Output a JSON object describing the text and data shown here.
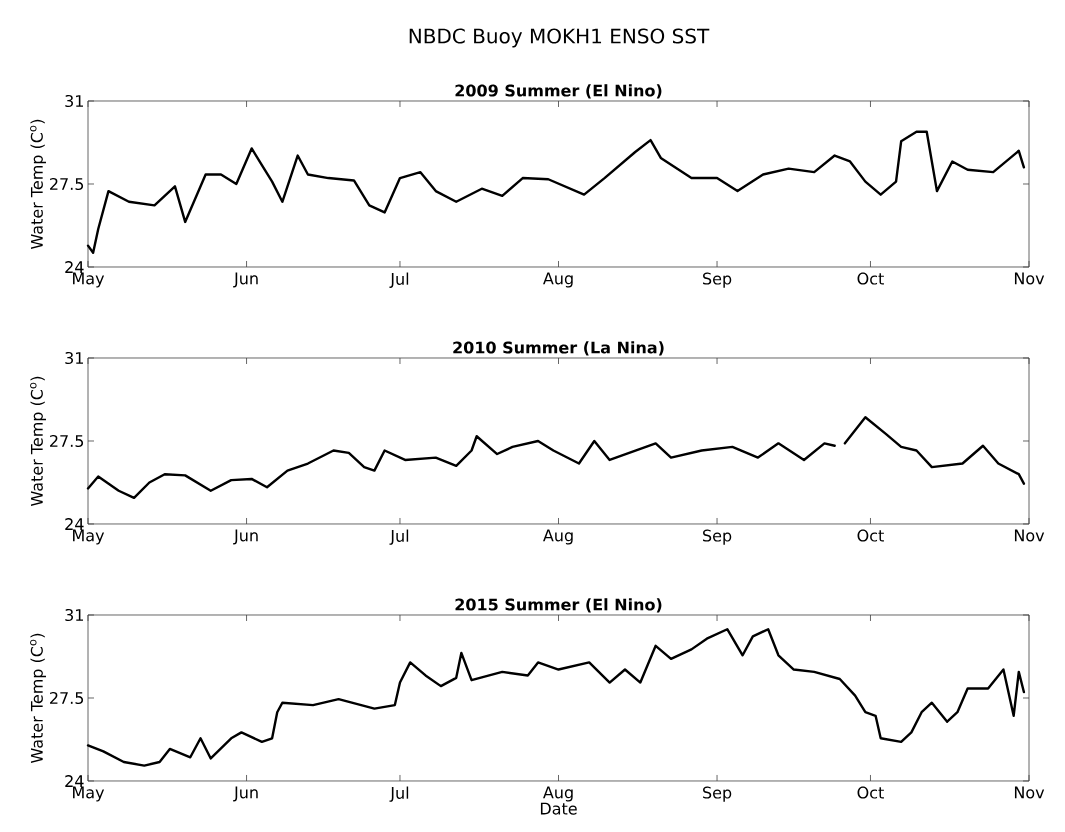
{
  "chart_data": [
    {
      "type": "line",
      "title": "NBDC Buoy MOKH1 ENSO SST",
      "subtitle": "2009 Summer (El Nino)",
      "ylabel": "Water Temp (C$^{o}$)",
      "color": "#000000",
      "marker": "none",
      "line_style": "solid",
      "xlim": [
        "2009-05-01",
        "2009-11-01"
      ],
      "xticks": [
        {
          "value": "2009-05-01",
          "label": "May"
        },
        {
          "value": "2009-06-01",
          "label": "Jun"
        },
        {
          "value": "2009-07-01",
          "label": "Jul"
        },
        {
          "value": "2009-08-01",
          "label": "Aug"
        },
        {
          "value": "2009-09-01",
          "label": "Sep"
        },
        {
          "value": "2009-10-01",
          "label": "Oct"
        },
        {
          "value": "2009-11-01",
          "label": "Nov"
        }
      ],
      "ylim": [
        24,
        31
      ],
      "yticks": [
        24,
        27.5,
        31
      ],
      "x": [
        "2009-05-01",
        "2009-05-02",
        "2009-05-03",
        "2009-05-05",
        "2009-05-09",
        "2009-05-14",
        "2009-05-18",
        "2009-05-20",
        "2009-05-24",
        "2009-05-27",
        "2009-05-30",
        "2009-06-02",
        "2009-06-04",
        "2009-06-06",
        "2009-06-08",
        "2009-06-11",
        "2009-06-13",
        "2009-06-17",
        "2009-06-22",
        "2009-06-25",
        "2009-06-28",
        "2009-07-01",
        "2009-07-05",
        "2009-07-08",
        "2009-07-12",
        "2009-07-17",
        "2009-07-21",
        "2009-07-25",
        "2009-07-30",
        "2009-08-06",
        "2009-08-10",
        "2009-08-16",
        "2009-08-19",
        "2009-08-21",
        "2009-08-27",
        "2009-09-01",
        "2009-09-05",
        "2009-09-10",
        "2009-09-15",
        "2009-09-20",
        "2009-09-24",
        "2009-09-27",
        "2009-09-30",
        "2009-10-03",
        "2009-10-06",
        "2009-10-07",
        "2009-10-10",
        "2009-10-12",
        "2009-10-13",
        "2009-10-14",
        "2009-10-17",
        "2009-10-20",
        "2009-10-25",
        "2009-10-30",
        "2009-10-31"
      ],
      "values": [
        24.9,
        24.6,
        25.6,
        27.2,
        26.75,
        26.6,
        27.4,
        25.9,
        27.9,
        27.9,
        27.5,
        29.0,
        28.3,
        27.6,
        26.75,
        28.7,
        27.9,
        27.75,
        27.65,
        26.6,
        26.3,
        27.75,
        28.0,
        27.2,
        26.75,
        27.3,
        27.0,
        27.75,
        27.7,
        27.05,
        27.75,
        28.85,
        29.35,
        28.6,
        27.75,
        27.75,
        27.2,
        27.9,
        28.15,
        28.0,
        28.7,
        28.45,
        27.6,
        27.05,
        27.6,
        29.3,
        29.7,
        29.7,
        28.45,
        27.2,
        28.45,
        28.1,
        28.0,
        28.9,
        28.2
      ]
    },
    {
      "type": "line",
      "title": "2010 Summer (La Nina)",
      "ylabel": "Water Temp (C$^{o}$)",
      "color": "#000000",
      "marker": "none",
      "line_style": "solid",
      "xlim": [
        "2010-05-01",
        "2010-11-01"
      ],
      "xticks": [
        {
          "value": "2010-05-01",
          "label": "May"
        },
        {
          "value": "2010-06-01",
          "label": "Jun"
        },
        {
          "value": "2010-07-01",
          "label": "Jul"
        },
        {
          "value": "2010-08-01",
          "label": "Aug"
        },
        {
          "value": "2010-09-01",
          "label": "Sep"
        },
        {
          "value": "2010-10-01",
          "label": "Oct"
        },
        {
          "value": "2010-11-01",
          "label": "Nov"
        }
      ],
      "ylim": [
        24,
        31
      ],
      "yticks": [
        24,
        27.5,
        31
      ],
      "x": [
        "2010-05-01",
        "2010-05-03",
        "2010-05-07",
        "2010-05-10",
        "2010-05-13",
        "2010-05-16",
        "2010-05-20",
        "2010-05-25",
        "2010-05-29",
        "2010-06-02",
        "2010-06-05",
        "2010-06-09",
        "2010-06-13",
        "2010-06-18",
        "2010-06-21",
        "2010-06-24",
        "2010-06-26",
        "2010-06-28",
        "2010-07-02",
        "2010-07-08",
        "2010-07-12",
        "2010-07-15",
        "2010-07-16",
        "2010-07-20",
        "2010-07-23",
        "2010-07-28",
        "2010-07-31",
        "2010-08-05",
        "2010-08-08",
        "2010-08-11",
        "2010-08-20",
        "2010-08-23",
        "2010-08-29",
        "2010-09-04",
        "2010-09-09",
        "2010-09-13",
        "2010-09-18",
        "2010-09-22",
        "2010-09-24",
        "2010-09-25",
        "2010-09-26",
        "2010-09-30",
        "2010-10-04",
        "2010-10-07",
        "2010-10-10",
        "2010-10-13",
        "2010-10-19",
        "2010-10-23",
        "2010-10-26",
        "2010-10-30",
        "2010-10-31"
      ],
      "values": [
        25.5,
        26.0,
        25.4,
        25.1,
        25.75,
        26.1,
        26.05,
        25.4,
        25.85,
        25.9,
        25.55,
        26.25,
        26.55,
        27.1,
        27.0,
        26.4,
        26.25,
        27.1,
        26.7,
        26.8,
        26.45,
        27.1,
        27.7,
        26.95,
        27.25,
        27.5,
        27.1,
        26.55,
        27.5,
        26.7,
        27.4,
        26.8,
        27.1,
        27.25,
        26.8,
        27.4,
        26.7,
        27.4,
        27.3,
        null,
        27.4,
        28.5,
        27.8,
        27.25,
        27.1,
        26.4,
        26.55,
        27.3,
        26.55,
        26.1,
        25.7
      ]
    },
    {
      "type": "line",
      "title": "2015 Summer (El Nino)",
      "xlabel": "Date",
      "ylabel": "Water Temp (C$^{o}$)",
      "color": "#000000",
      "marker": "none",
      "line_style": "solid",
      "xlim": [
        "2015-05-01",
        "2015-11-01"
      ],
      "xticks": [
        {
          "value": "2015-05-01",
          "label": "May"
        },
        {
          "value": "2015-06-01",
          "label": "Jun"
        },
        {
          "value": "2015-07-01",
          "label": "Jul"
        },
        {
          "value": "2015-08-01",
          "label": "Aug"
        },
        {
          "value": "2015-09-01",
          "label": "Sep"
        },
        {
          "value": "2015-10-01",
          "label": "Oct"
        },
        {
          "value": "2015-11-01",
          "label": "Nov"
        }
      ],
      "ylim": [
        24,
        31
      ],
      "yticks": [
        24,
        27.5,
        31
      ],
      "x": [
        "2015-05-01",
        "2015-05-04",
        "2015-05-08",
        "2015-05-12",
        "2015-05-15",
        "2015-05-17",
        "2015-05-21",
        "2015-05-23",
        "2015-05-25",
        "2015-05-29",
        "2015-05-31",
        "2015-06-04",
        "2015-06-06",
        "2015-06-07",
        "2015-06-08",
        "2015-06-14",
        "2015-06-19",
        "2015-06-26",
        "2015-06-30",
        "2015-07-01",
        "2015-07-03",
        "2015-07-06",
        "2015-07-09",
        "2015-07-12",
        "2015-07-13",
        "2015-07-15",
        "2015-07-21",
        "2015-07-26",
        "2015-07-28",
        "2015-08-01",
        "2015-08-07",
        "2015-08-11",
        "2015-08-14",
        "2015-08-17",
        "2015-08-20",
        "2015-08-23",
        "2015-08-27",
        "2015-08-30",
        "2015-09-03",
        "2015-09-06",
        "2015-09-08",
        "2015-09-11",
        "2015-09-13",
        "2015-09-16",
        "2015-09-20",
        "2015-09-25",
        "2015-09-28",
        "2015-09-30",
        "2015-10-02",
        "2015-10-03",
        "2015-10-07",
        "2015-10-09",
        "2015-10-11",
        "2015-10-13",
        "2015-10-16",
        "2015-10-18",
        "2015-10-20",
        "2015-10-24",
        "2015-10-27",
        "2015-10-29",
        "2015-10-30",
        "2015-10-31"
      ],
      "values": [
        25.5,
        25.25,
        24.8,
        24.65,
        24.8,
        25.35,
        25.0,
        25.8,
        24.95,
        25.8,
        26.05,
        25.65,
        25.8,
        26.9,
        27.3,
        27.2,
        27.45,
        27.05,
        27.2,
        28.15,
        29.0,
        28.45,
        28.0,
        28.35,
        29.4,
        28.25,
        28.6,
        28.45,
        29.0,
        28.7,
        29.0,
        28.15,
        28.7,
        28.15,
        29.7,
        29.15,
        29.55,
        30.0,
        30.4,
        29.3,
        30.1,
        30.4,
        29.3,
        28.7,
        28.6,
        28.3,
        27.6,
        26.9,
        26.75,
        25.8,
        25.65,
        26.05,
        26.9,
        27.3,
        26.5,
        26.9,
        27.9,
        27.9,
        28.7,
        26.75,
        28.6,
        27.75
      ]
    }
  ]
}
